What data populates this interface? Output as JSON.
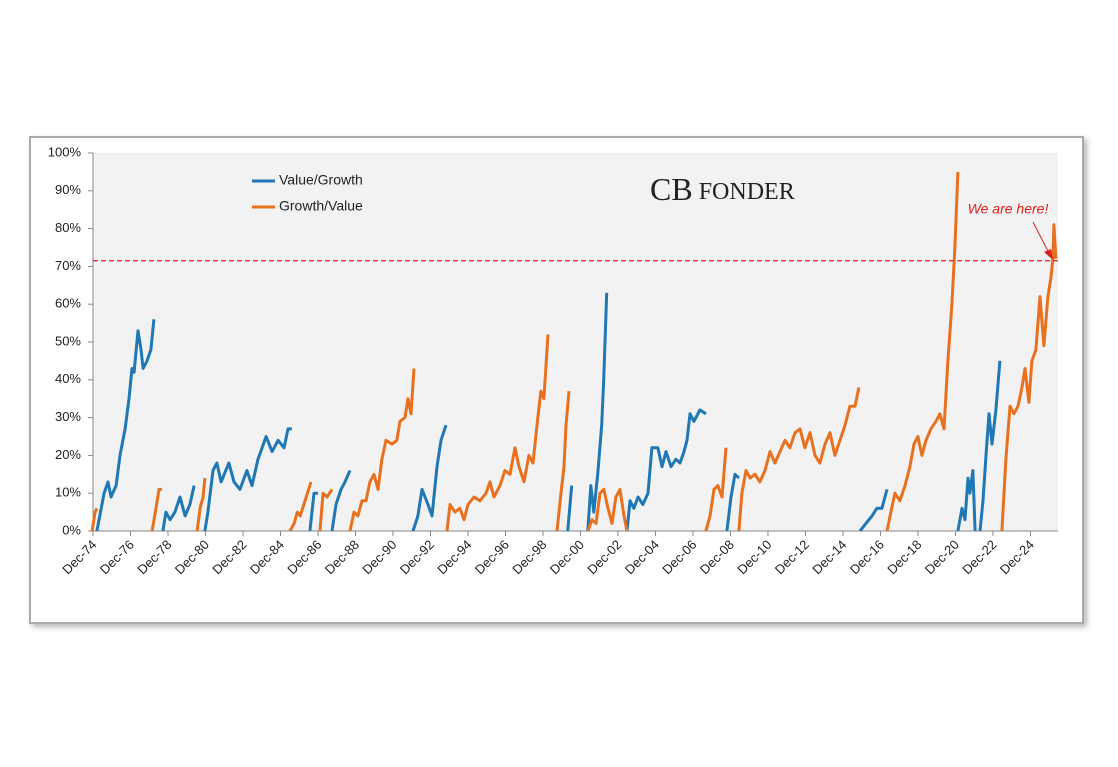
{
  "chart_data": {
    "type": "line",
    "logo": {
      "initials": "CB",
      "name": "FONDER"
    },
    "annotation": "We are here!",
    "threshold": 71.5,
    "threshold_color": "#e02020",
    "xlim": [
      1974.92,
      2026.39
    ],
    "xticks": [
      {
        "value": 1974.92,
        "label": "Dec-74"
      },
      {
        "value": 1976.92,
        "label": "Dec-76"
      },
      {
        "value": 1978.92,
        "label": "Dec-78"
      },
      {
        "value": 1980.92,
        "label": "Dec-80"
      },
      {
        "value": 1982.92,
        "label": "Dec-82"
      },
      {
        "value": 1984.92,
        "label": "Dec-84"
      },
      {
        "value": 1986.92,
        "label": "Dec-86"
      },
      {
        "value": 1988.92,
        "label": "Dec-88"
      },
      {
        "value": 1990.92,
        "label": "Dec-90"
      },
      {
        "value": 1992.92,
        "label": "Dec-92"
      },
      {
        "value": 1994.92,
        "label": "Dec-94"
      },
      {
        "value": 1996.92,
        "label": "Dec-96"
      },
      {
        "value": 1998.92,
        "label": "Dec-98"
      },
      {
        "value": 2000.92,
        "label": "Dec-00"
      },
      {
        "value": 2002.92,
        "label": "Dec-02"
      },
      {
        "value": 2004.92,
        "label": "Dec-04"
      },
      {
        "value": 2006.92,
        "label": "Dec-06"
      },
      {
        "value": 2008.92,
        "label": "Dec-08"
      },
      {
        "value": 2010.92,
        "label": "Dec-10"
      },
      {
        "value": 2012.92,
        "label": "Dec-12"
      },
      {
        "value": 2014.92,
        "label": "Dec-14"
      },
      {
        "value": 2016.92,
        "label": "Dec-16"
      },
      {
        "value": 2018.92,
        "label": "Dec-18"
      },
      {
        "value": 2020.92,
        "label": "Dec-20"
      },
      {
        "value": 2022.92,
        "label": "Dec-22"
      },
      {
        "value": 2024.92,
        "label": "Dec-24"
      }
    ],
    "ylim": [
      0,
      100
    ],
    "yticks": [
      {
        "value": 0,
        "label": "0%"
      },
      {
        "value": 10,
        "label": "10%"
      },
      {
        "value": 20,
        "label": "20%"
      },
      {
        "value": 30,
        "label": "30%"
      },
      {
        "value": 40,
        "label": "40%"
      },
      {
        "value": 50,
        "label": "50%"
      },
      {
        "value": 60,
        "label": "60%"
      },
      {
        "value": 70,
        "label": "70%"
      },
      {
        "value": 80,
        "label": "80%"
      },
      {
        "value": 90,
        "label": "90%"
      },
      {
        "value": 100,
        "label": "100%"
      }
    ],
    "series": [
      {
        "name": "Value/Growth",
        "color": "#1f77b4",
        "x": [
          1975.13,
          1975.51,
          1975.72,
          1975.88,
          1976.15,
          1976.36,
          1976.63,
          1976.84,
          1977.0,
          1977.11,
          1977.32,
          1977.48,
          1977.59,
          1977.8,
          1978.01,
          1978.17,
          null,
          1978.65,
          1978.81,
          1979.03,
          1979.29,
          1979.56,
          1979.83,
          1980.09,
          1980.31,
          null,
          1980.89,
          1981.05,
          1981.32,
          1981.53,
          1981.75,
          1982.17,
          1982.44,
          1982.76,
          1983.13,
          1983.4,
          1983.72,
          1984.15,
          1984.47,
          1984.79,
          1985.11,
          1985.32,
          1985.53,
          null,
          1986.49,
          1986.71,
          1986.92,
          null,
          1987.67,
          1987.88,
          1988.15,
          1988.36,
          1988.63,
          null,
          1991.99,
          1992.25,
          1992.47,
          1992.79,
          1993.0,
          1993.27,
          1993.48,
          1993.75,
          null,
          2000.24,
          2000.45,
          null,
          2001.31,
          2001.47,
          2001.63,
          2001.84,
          2002.05,
          2002.16,
          2002.32,
          null,
          2003.4,
          2003.56,
          2003.77,
          2003.99,
          2004.25,
          2004.52,
          2004.73,
          2005.05,
          2005.27,
          2005.48,
          2005.75,
          2006.01,
          2006.23,
          2006.44,
          2006.6,
          2006.76,
          2006.97,
          2007.29,
          2007.61,
          null,
          2008.73,
          2008.95,
          2009.16,
          2009.37,
          null,
          2015.83,
          2016.15,
          2016.47,
          2016.73,
          2017.0,
          2017.27,
          null,
          2021.05,
          2021.27,
          2021.43,
          2021.59,
          2021.69,
          2021.85,
          2021.97,
          null,
          2022.23,
          2022.39,
          2022.55,
          2022.71,
          2022.87,
          2023.08,
          2023.29
        ],
        "values": [
          0,
          10,
          13,
          9,
          12,
          20,
          27,
          35,
          43,
          42,
          53,
          48,
          43,
          45,
          48,
          56,
          null,
          0,
          5,
          3,
          5,
          9,
          4,
          7,
          12,
          null,
          0,
          5,
          16,
          18,
          13,
          18,
          13,
          11,
          16,
          12,
          19,
          25,
          21,
          24,
          22,
          27,
          27,
          null,
          0,
          10,
          10,
          null,
          0,
          7,
          11,
          13,
          16,
          null,
          0,
          4,
          11,
          7,
          4,
          17,
          24,
          28,
          null,
          0,
          12,
          null,
          0,
          12,
          5,
          15,
          28,
          40,
          63,
          null,
          0,
          8,
          6,
          9,
          7,
          10,
          22,
          22,
          17,
          21,
          17,
          19,
          18,
          21,
          24,
          31,
          29,
          32,
          31,
          null,
          0,
          9,
          15,
          14,
          null,
          0,
          2,
          4,
          6,
          6,
          11,
          null,
          0,
          6,
          3,
          14,
          10,
          16,
          0,
          null,
          0,
          8,
          20,
          31,
          23,
          32,
          45
        ]
      },
      {
        "name": "Growth/Value",
        "color": "#e8711f",
        "x": [
          1974.87,
          1975.03,
          1975.13,
          null,
          1978.07,
          1978.28,
          1978.44,
          1978.6,
          null,
          1980.47,
          1980.63,
          1980.79,
          1980.89,
          null,
          1985.43,
          1985.65,
          1985.81,
          1985.97,
          1986.23,
          1986.55,
          null,
          1987.03,
          1987.19,
          1987.4,
          1987.67,
          null,
          1988.63,
          1988.84,
          1989.05,
          1989.27,
          1989.48,
          1989.69,
          1989.91,
          1990.12,
          1990.33,
          1990.55,
          1990.87,
          1991.13,
          1991.29,
          1991.56,
          1991.72,
          1991.88,
          1992.04,
          null,
          1993.8,
          1993.96,
          1994.23,
          1994.49,
          1994.71,
          1994.92,
          1995.24,
          1995.56,
          1995.88,
          1996.09,
          1996.31,
          1996.63,
          1996.89,
          1997.16,
          1997.43,
          1997.64,
          1997.91,
          1998.17,
          1998.39,
          1998.6,
          1998.81,
          1998.97,
          1999.19,
          null,
          1999.67,
          1999.88,
          2000.04,
          2000.15,
          2000.31,
          null,
          2001.32,
          2001.53,
          2001.75,
          2001.96,
          2002.17,
          2002.39,
          2002.6,
          2002.81,
          2003.03,
          2003.24,
          2003.4,
          null,
          2007.61,
          2007.83,
          2008.04,
          2008.25,
          2008.47,
          2008.68,
          null,
          2009.37,
          2009.53,
          2009.75,
          2009.96,
          2010.23,
          2010.49,
          2010.76,
          2011.03,
          2011.29,
          2011.56,
          2011.83,
          2012.09,
          2012.36,
          2012.63,
          2012.89,
          2013.16,
          2013.43,
          2013.69,
          2013.96,
          2014.23,
          2014.49,
          2014.76,
          2015.03,
          2015.29,
          2015.56,
          2015.77,
          null,
          2017.27,
          2017.48,
          2017.69,
          2017.96,
          2018.23,
          2018.49,
          2018.71,
          2018.92,
          2019.13,
          2019.35,
          2019.61,
          2019.88,
          2020.09,
          2020.31,
          2020.52,
          2020.73,
          2020.89,
          2021.05,
          null,
          2023.4,
          2023.61,
          2023.83,
          2024.04,
          2024.25,
          2024.47,
          2024.63,
          2024.84,
          2025.0,
          2025.21,
          2025.43,
          2025.64,
          2025.85,
          2026.01,
          2026.12,
          2026.17,
          2026.28
        ],
        "values": [
          0,
          5,
          6,
          null,
          0,
          6,
          11,
          11,
          null,
          0,
          6,
          9,
          14,
          null,
          0,
          2,
          5,
          4,
          8,
          13,
          null,
          0,
          10,
          9,
          11,
          null,
          0,
          5,
          4,
          8,
          8,
          13,
          15,
          11,
          19,
          24,
          23,
          24,
          29,
          30,
          35,
          31,
          43,
          null,
          0,
          7,
          5,
          6,
          3,
          7,
          9,
          8,
          10,
          13,
          9,
          12,
          16,
          15,
          22,
          17,
          13,
          20,
          18,
          28,
          37,
          35,
          52,
          null,
          0,
          10,
          17,
          28,
          37,
          null,
          0,
          3,
          2,
          10,
          11,
          6,
          2,
          9,
          11,
          4,
          0,
          null,
          0,
          4,
          11,
          12,
          9,
          22,
          null,
          0,
          10,
          16,
          14,
          15,
          13,
          16,
          21,
          18,
          21,
          24,
          22,
          26,
          27,
          22,
          26,
          20,
          18,
          23,
          26,
          20,
          24,
          28,
          33,
          33,
          38,
          null,
          0,
          5,
          10,
          8,
          12,
          17,
          23,
          25,
          20,
          24,
          27,
          29,
          31,
          27,
          45,
          60,
          75,
          95,
          null,
          0,
          19,
          33,
          31,
          33,
          38,
          43,
          34,
          45,
          48,
          62,
          49,
          62,
          67,
          72,
          81,
          72
        ]
      }
    ]
  }
}
